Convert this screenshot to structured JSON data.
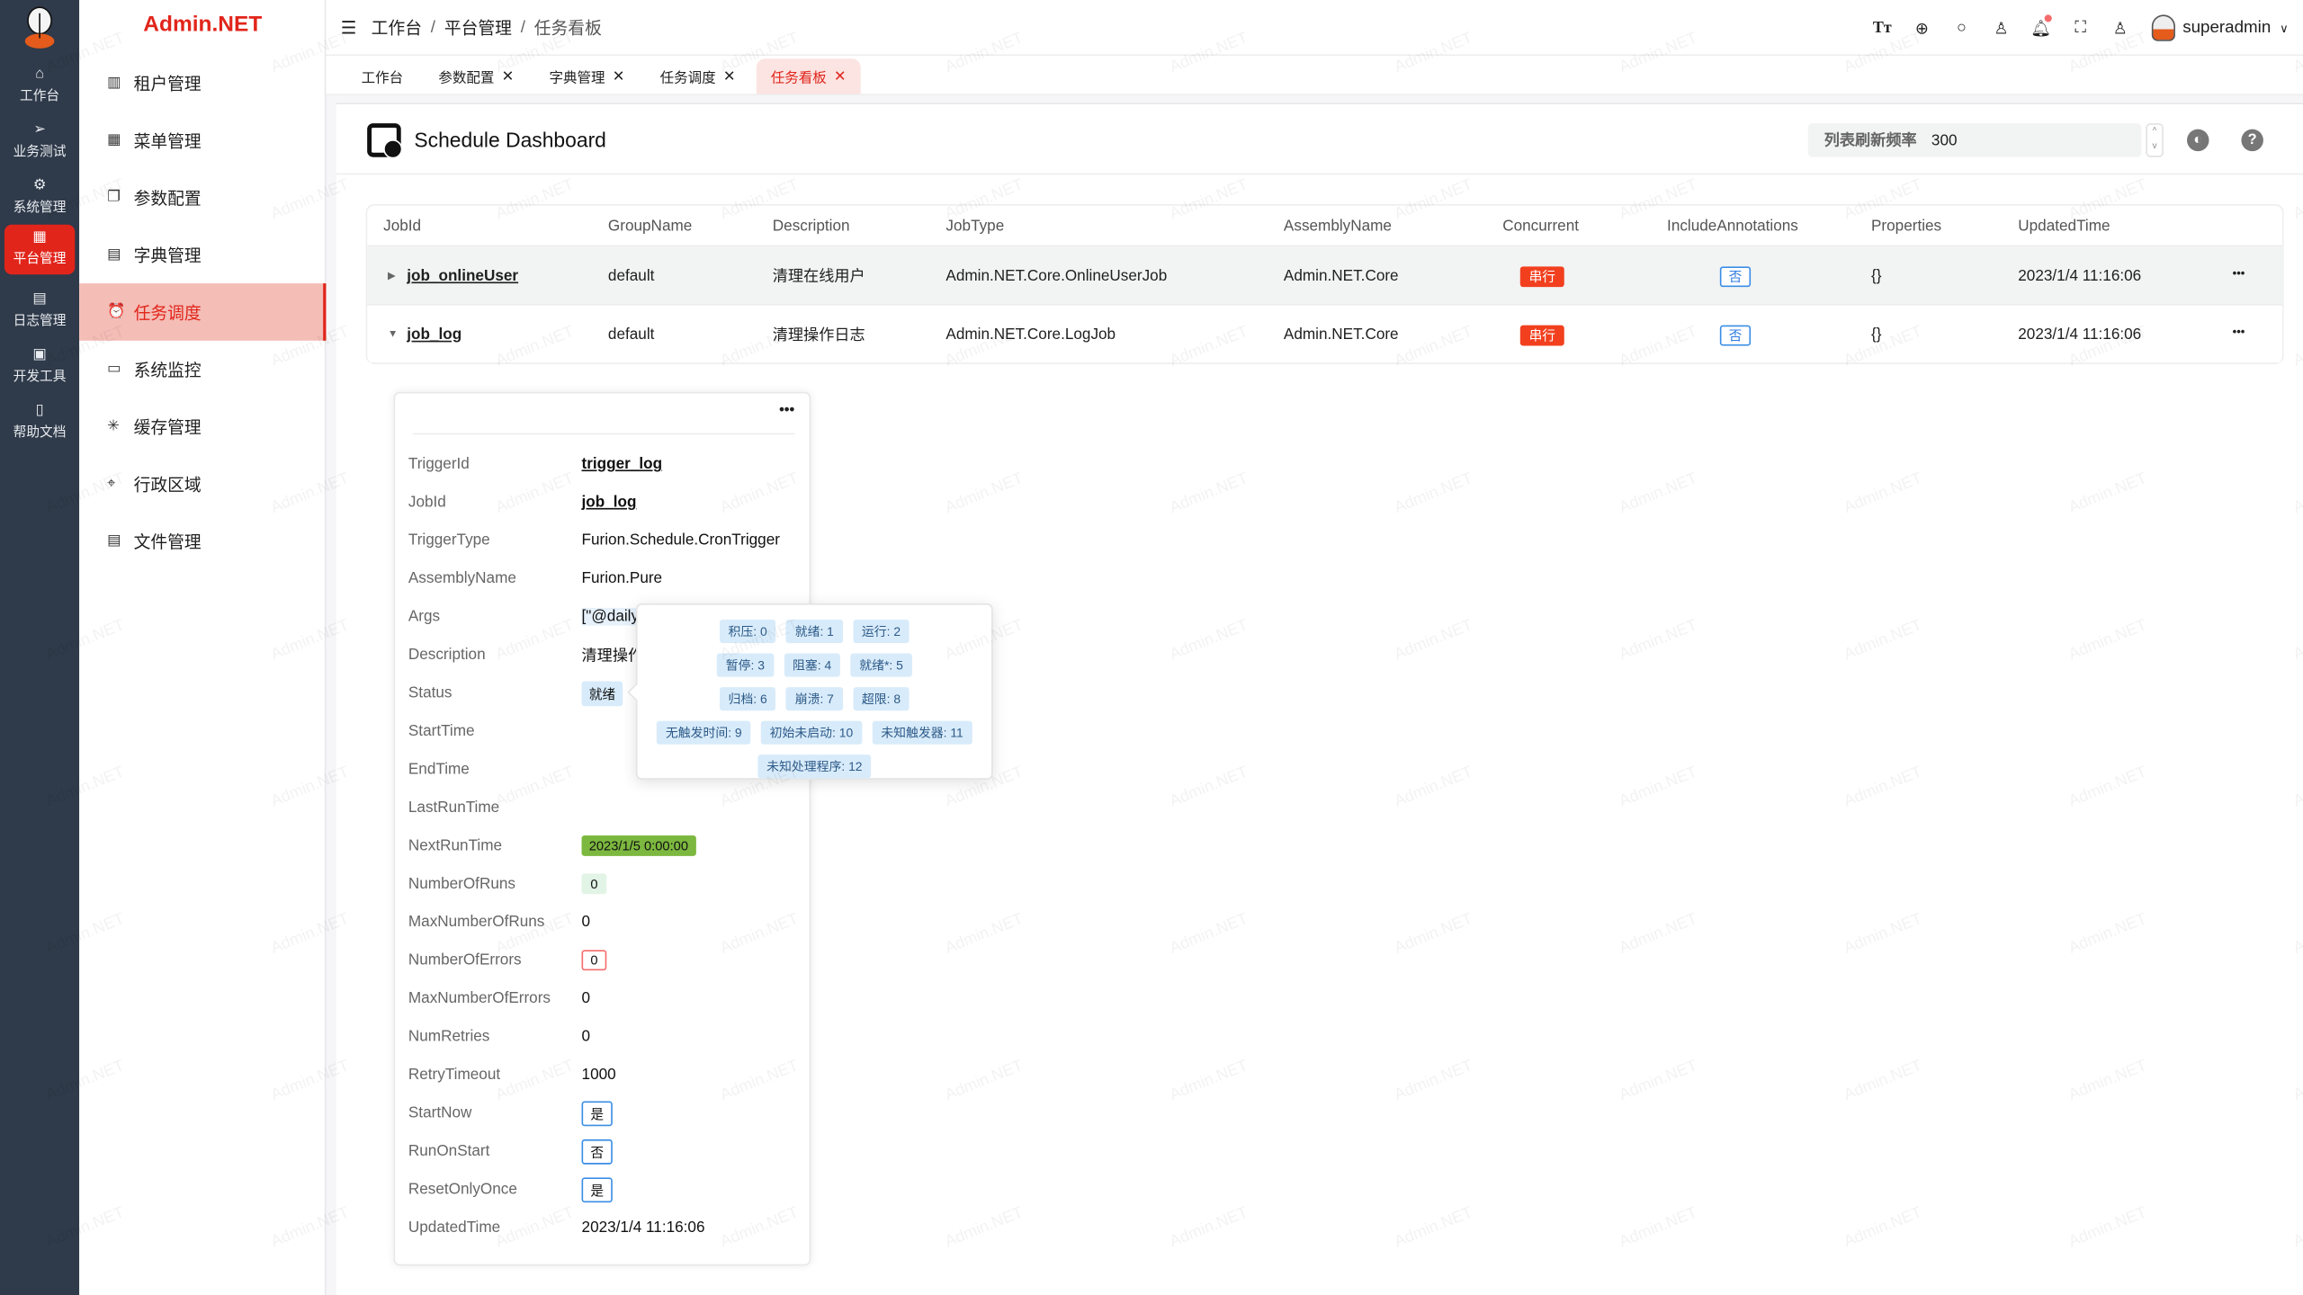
{
  "brand": "Admin.NET",
  "watermark": "Admin.NET",
  "rail": [
    {
      "label": "工作台",
      "icon": "home-icon",
      "glyph": "⌂"
    },
    {
      "label": "业务测试",
      "icon": "send-icon",
      "glyph": "➢"
    },
    {
      "label": "系统管理",
      "icon": "gear-icon",
      "glyph": "⚙"
    },
    {
      "label": "平台管理",
      "icon": "grid-icon",
      "glyph": "▦",
      "active": true
    },
    {
      "label": "日志管理",
      "icon": "document-icon",
      "glyph": "▤"
    },
    {
      "label": "开发工具",
      "icon": "chip-icon",
      "glyph": "▣"
    },
    {
      "label": "帮助文档",
      "icon": "notebook-icon",
      "glyph": "▯"
    }
  ],
  "menu": [
    {
      "label": "租户管理",
      "icon": "building-icon",
      "glyph": "▥"
    },
    {
      "label": "菜单管理",
      "icon": "grid-icon",
      "glyph": "▦"
    },
    {
      "label": "参数配置",
      "icon": "copy-icon",
      "glyph": "❐"
    },
    {
      "label": "字典管理",
      "icon": "book-icon",
      "glyph": "▤"
    },
    {
      "label": "任务调度",
      "icon": "alarm-clock-icon",
      "glyph": "⏰",
      "active": true
    },
    {
      "label": "系统监控",
      "icon": "monitor-icon",
      "glyph": "▭"
    },
    {
      "label": "缓存管理",
      "icon": "loading-icon",
      "glyph": "✳"
    },
    {
      "label": "行政区域",
      "icon": "location-icon",
      "glyph": "⌖"
    },
    {
      "label": "文件管理",
      "icon": "file-icon",
      "glyph": "▤"
    }
  ],
  "header": {
    "breadcrumb": [
      "工作台",
      "平台管理",
      "任务看板"
    ],
    "username": "superadmin"
  },
  "tabs": [
    {
      "label": "工作台",
      "closable": false
    },
    {
      "label": "参数配置",
      "closable": true
    },
    {
      "label": "字典管理",
      "closable": true
    },
    {
      "label": "任务调度",
      "closable": true
    },
    {
      "label": "任务看板",
      "closable": true,
      "active": true
    }
  ],
  "page": {
    "title": "Schedule Dashboard",
    "refresh_label": "列表刷新频率",
    "refresh_value": "300"
  },
  "table": {
    "columns": [
      "JobId",
      "GroupName",
      "Description",
      "JobType",
      "AssemblyName",
      "Concurrent",
      "IncludeAnnotations",
      "Properties",
      "UpdatedTime"
    ],
    "rows": [
      {
        "JobId": "job_onlineUser",
        "GroupName": "default",
        "Description": "清理在线用户",
        "JobType": "Admin.NET.Core.OnlineUserJob",
        "AssemblyName": "Admin.NET.Core",
        "Concurrent": "串行",
        "IncludeAnnotations": "否",
        "Properties": "{}",
        "UpdatedTime": "2023/1/4 11:16:06",
        "expanded": false
      },
      {
        "JobId": "job_log",
        "GroupName": "default",
        "Description": "清理操作日志",
        "JobType": "Admin.NET.Core.LogJob",
        "AssemblyName": "Admin.NET.Core",
        "Concurrent": "串行",
        "IncludeAnnotations": "否",
        "Properties": "{}",
        "UpdatedTime": "2023/1/4 11:16:06",
        "expanded": true
      }
    ]
  },
  "trigger": [
    {
      "k": "TriggerId",
      "v": "trigger_log",
      "style": "link"
    },
    {
      "k": "JobId",
      "v": "job_log",
      "style": "link"
    },
    {
      "k": "TriggerType",
      "v": "Furion.Schedule.CronTrigger"
    },
    {
      "k": "AssemblyName",
      "v": "Furion.Pure"
    },
    {
      "k": "Args",
      "v": "[\"@daily"
    },
    {
      "k": "Description",
      "v": "清理操作"
    },
    {
      "k": "Status",
      "v": "就绪",
      "style": "tag-lb"
    },
    {
      "k": "StartTime",
      "v": ""
    },
    {
      "k": "EndTime",
      "v": ""
    },
    {
      "k": "LastRunTime",
      "v": ""
    },
    {
      "k": "NextRunTime",
      "v": "2023/1/5 0:00:00",
      "style": "tag-green"
    },
    {
      "k": "NumberOfRuns",
      "v": "0",
      "style": "tag-lg"
    },
    {
      "k": "MaxNumberOfRuns",
      "v": "0"
    },
    {
      "k": "NumberOfErrors",
      "v": "0",
      "style": "tag-errb"
    },
    {
      "k": "MaxNumberOfErrors",
      "v": "0"
    },
    {
      "k": "NumRetries",
      "v": "0"
    },
    {
      "k": "RetryTimeout",
      "v": "1000"
    },
    {
      "k": "StartNow",
      "v": "是",
      "style": "tag-bl"
    },
    {
      "k": "RunOnStart",
      "v": "否",
      "style": "tag-bl"
    },
    {
      "k": "ResetOnlyOnce",
      "v": "是",
      "style": "tag-bl"
    },
    {
      "k": "UpdatedTime",
      "v": "2023/1/4 11:16:06"
    }
  ],
  "status_popover": [
    [
      "积压: 0",
      "就绪: 1",
      "运行: 2"
    ],
    [
      "暂停: 3",
      "阻塞: 4",
      "就绪*: 5"
    ],
    [
      "归档: 6",
      "崩溃: 7",
      "超限: 8"
    ],
    [
      "无触发时间: 9",
      "初始未启动: 10",
      "未知触发器: 11"
    ],
    [
      "未知处理程序: 12"
    ]
  ],
  "colors": {
    "accent": "#e1251b",
    "rail_bg": "#2f3a4a",
    "active_menu_bg": "#f4bdb6",
    "tag_red": "#f2401f",
    "tag_green": "#7cb83f",
    "tag_blue": "#3a8ee6"
  }
}
